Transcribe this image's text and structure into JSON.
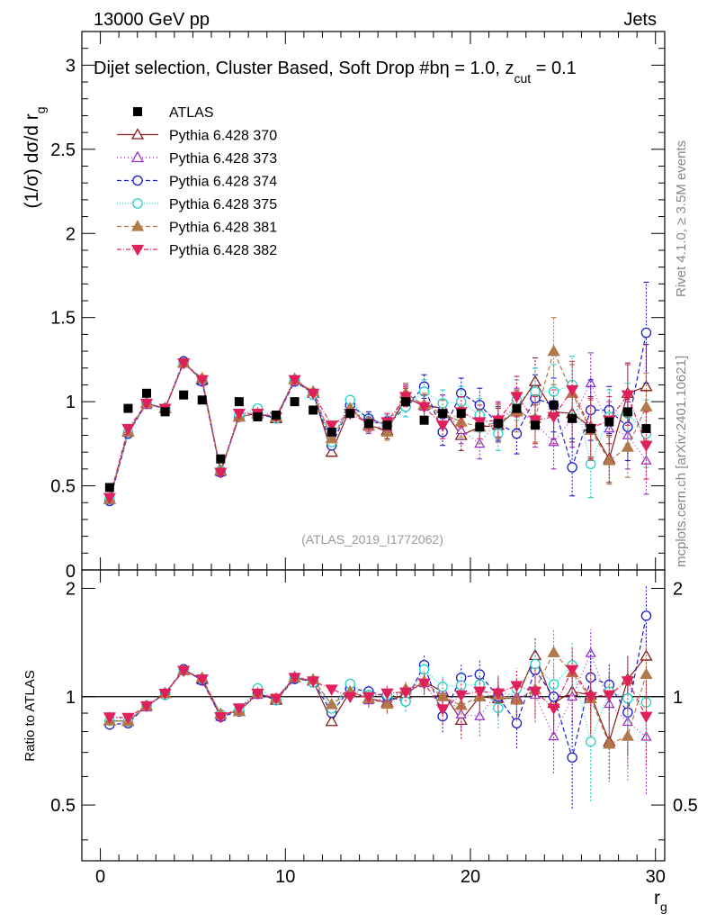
{
  "header": {
    "left": "13000 GeV pp",
    "right": "Jets"
  },
  "side_text": {
    "rivet": "Rivet 4.1.0, ≥ 3.5M events",
    "mcplots": "mcplots.cern.ch [arXiv:2401.10621]"
  },
  "watermark": "(ATLAS_2019_I1772062)",
  "colors": {
    "ATLAS": "#000000",
    "370": "#8b1a1a",
    "373": "#9932cc",
    "374": "#1c1ccc",
    "375": "#22d3c5",
    "381": "#b07a4a",
    "382": "#e0205a"
  },
  "chart_data": {
    "type": "scatter",
    "title": "Dijet selection, Cluster Based, Soft Drop #b",
    "title_extra": "η = 1.0, z",
    "title_sub": "cut",
    "title_tail": " = 0.1",
    "xlabel": "r",
    "xlabel_sub": "g",
    "ylabel": "(1/σ) dσ/d r",
    "ylabel_sub": "g",
    "ratio_ylabel": "Ratio to ATLAS",
    "xlim": [
      -1,
      30.5
    ],
    "ylim": [
      0,
      3.2
    ],
    "ratio_ylim": [
      0.35,
      2.25
    ],
    "x_ticks": [
      "0",
      "10",
      "20",
      "30"
    ],
    "y_ticks": [
      "0.5",
      "1",
      "1.5",
      "2",
      "2.5",
      "3"
    ],
    "y_tick_values": [
      0.5,
      1,
      1.5,
      2,
      2.5,
      3
    ],
    "ratio_ticks": [
      "0.5",
      "1",
      "2"
    ],
    "ratio_tick_values": [
      0.5,
      1,
      2
    ],
    "x": [
      0.5,
      1.5,
      2.5,
      3.5,
      4.5,
      5.5,
      6.5,
      7.5,
      8.5,
      9.5,
      10.5,
      11.5,
      12.5,
      13.5,
      14.5,
      15.5,
      16.5,
      17.5,
      18.5,
      19.5,
      20.5,
      21.5,
      22.5,
      23.5,
      24.5,
      25.5,
      26.5,
      27.5,
      28.5,
      29.5
    ],
    "data": {
      "name": "ATLAS",
      "values": [
        0.49,
        0.96,
        1.05,
        0.94,
        1.04,
        1.01,
        0.66,
        1.0,
        0.91,
        0.92,
        1.0,
        0.95,
        0.82,
        0.93,
        0.87,
        0.86,
        1.0,
        0.89,
        0.93,
        0.93,
        0.85,
        0.87,
        0.96,
        0.86,
        0.98,
        0.9,
        0.84,
        0.88,
        0.94,
        0.84
      ]
    },
    "series": [
      {
        "name": "Pythia 6.428 370",
        "key": "370",
        "marker": "tri-up-open",
        "dash": "",
        "values": [
          0.42,
          0.82,
          0.99,
          0.96,
          1.23,
          1.13,
          0.59,
          0.91,
          0.93,
          0.9,
          1.13,
          1.05,
          0.7,
          0.96,
          0.86,
          0.83,
          1.02,
          0.98,
          0.96,
          0.8,
          0.85,
          0.86,
          0.95,
          1.12,
          0.94,
          0.93,
          0.85,
          0.66,
          1.05,
          1.09
        ],
        "errors": [
          0,
          0,
          0,
          0,
          0,
          0,
          0,
          0,
          0,
          0,
          0,
          0,
          0,
          0,
          0.04,
          0.05,
          0.06,
          0.07,
          0.08,
          0.09,
          0.1,
          0.1,
          0.12,
          0.14,
          0.16,
          0.17,
          0.18,
          0.14,
          0.18,
          0.25
        ]
      },
      {
        "name": "Pythia 6.428 373",
        "key": "373",
        "marker": "tri-up-open-small",
        "dash": "1,3",
        "values": [
          0.43,
          0.83,
          0.98,
          0.96,
          1.24,
          1.12,
          0.58,
          0.92,
          0.92,
          0.91,
          1.14,
          1.05,
          0.78,
          0.99,
          0.85,
          0.85,
          1.04,
          0.97,
          0.97,
          0.83,
          0.75,
          0.9,
          0.96,
          0.87,
          0.76,
          0.9,
          1.11,
          0.84,
          0.8,
          0.65
        ],
        "errors": [
          0,
          0,
          0,
          0,
          0,
          0,
          0,
          0,
          0,
          0,
          0,
          0,
          0,
          0,
          0.04,
          0.05,
          0.06,
          0.07,
          0.07,
          0.08,
          0.09,
          0.1,
          0.12,
          0.14,
          0.16,
          0.17,
          0.18,
          0.16,
          0.2,
          0.2
        ]
      },
      {
        "name": "Pythia 6.428 374",
        "key": "374",
        "marker": "circle-open",
        "dash": "5,3",
        "values": [
          0.41,
          0.81,
          0.99,
          0.96,
          1.24,
          1.12,
          0.58,
          0.91,
          0.93,
          0.9,
          1.12,
          1.05,
          0.74,
          0.98,
          0.9,
          0.86,
          0.97,
          1.09,
          0.82,
          1.05,
          0.98,
          0.87,
          0.81,
          1.02,
          0.98,
          0.61,
          0.95,
          0.95,
          0.85,
          1.41
        ],
        "errors": [
          0,
          0,
          0,
          0,
          0,
          0,
          0,
          0,
          0,
          0,
          0,
          0,
          0,
          0,
          0.04,
          0.05,
          0.06,
          0.07,
          0.08,
          0.09,
          0.1,
          0.1,
          0.12,
          0.14,
          0.16,
          0.17,
          0.18,
          0.14,
          0.2,
          0.3
        ]
      },
      {
        "name": "Pythia 6.428 375",
        "key": "375",
        "marker": "circle-open-cyan",
        "dash": "1,2",
        "values": [
          0.42,
          0.82,
          0.99,
          0.95,
          1.23,
          1.13,
          0.59,
          0.92,
          0.96,
          0.9,
          1.13,
          1.04,
          0.76,
          1.01,
          0.88,
          0.87,
          0.97,
          1.06,
          0.99,
          1.0,
          0.92,
          0.81,
          1.01,
          1.06,
          1.06,
          1.1,
          0.63,
          0.91,
          0.93,
          0.81
        ],
        "errors": [
          0,
          0,
          0,
          0,
          0,
          0,
          0,
          0,
          0,
          0,
          0,
          0,
          0,
          0,
          0.04,
          0.05,
          0.06,
          0.07,
          0.08,
          0.09,
          0.1,
          0.1,
          0.12,
          0.14,
          0.16,
          0.17,
          0.2,
          0.16,
          0.18,
          0.2
        ]
      },
      {
        "name": "Pythia 6.428 381",
        "key": "381",
        "marker": "tri-up-filled",
        "dash": "5,3",
        "values": [
          0.42,
          0.82,
          0.99,
          0.96,
          1.23,
          1.14,
          0.59,
          0.91,
          0.93,
          0.91,
          1.13,
          1.06,
          0.78,
          0.96,
          0.86,
          0.82,
          1.05,
          0.98,
          0.93,
          0.88,
          0.85,
          0.88,
          0.94,
          0.9,
          1.3,
          1.05,
          0.83,
          0.65,
          0.73,
          0.97
        ],
        "errors": [
          0,
          0,
          0,
          0,
          0,
          0,
          0,
          0,
          0,
          0,
          0,
          0,
          0,
          0,
          0.04,
          0.05,
          0.06,
          0.07,
          0.08,
          0.09,
          0.1,
          0.1,
          0.12,
          0.14,
          0.2,
          0.17,
          0.18,
          0.14,
          0.18,
          0.2
        ]
      },
      {
        "name": "Pythia 6.428 382",
        "key": "382",
        "marker": "tri-down-filled",
        "dash": "5,2,1,2",
        "values": [
          0.43,
          0.84,
          0.99,
          0.96,
          1.23,
          1.13,
          0.58,
          0.93,
          0.93,
          0.91,
          1.13,
          1.05,
          0.86,
          0.93,
          0.87,
          0.88,
          1.03,
          0.97,
          0.86,
          0.94,
          0.88,
          0.89,
          1.03,
          0.89,
          0.91,
          1.07,
          0.84,
          0.89,
          1.04,
          0.74
        ],
        "errors": [
          0,
          0,
          0,
          0,
          0,
          0,
          0,
          0,
          0,
          0,
          0,
          0,
          0,
          0,
          0.04,
          0.05,
          0.06,
          0.07,
          0.08,
          0.09,
          0.1,
          0.1,
          0.12,
          0.14,
          0.16,
          0.17,
          0.18,
          0.14,
          0.18,
          0.2
        ]
      }
    ]
  }
}
